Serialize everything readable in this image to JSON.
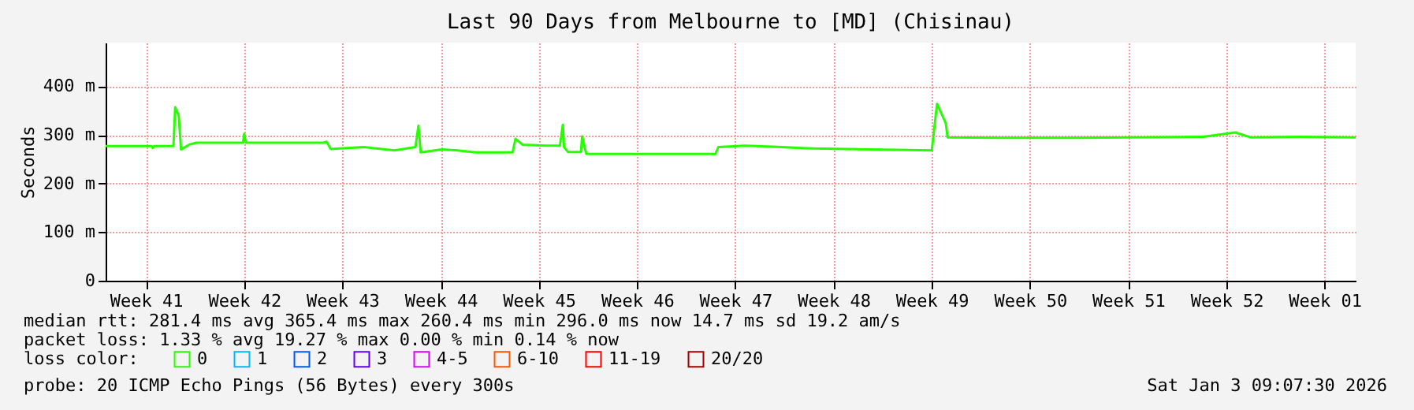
{
  "chart_data": {
    "type": "line",
    "title": "Last 90 Days from Melbourne to [MD] (Chisinau)",
    "ylabel": "Seconds",
    "legend_title": "loss color:",
    "legend": "bottom",
    "grid": true,
    "marker": "none",
    "line_style": "solid",
    "xlim": [
      "2025-10-06T15:00",
      "2026-01-03T17:00"
    ],
    "xticks": [
      {
        "value": "2025-10-09T12:00",
        "label": "Week 41"
      },
      {
        "value": "2025-10-16T12:00",
        "label": "Week 42"
      },
      {
        "value": "2025-10-23T12:00",
        "label": "Week 43"
      },
      {
        "value": "2025-10-30T12:00",
        "label": "Week 44"
      },
      {
        "value": "2025-11-06T12:00",
        "label": "Week 45"
      },
      {
        "value": "2025-11-13T12:00",
        "label": "Week 46"
      },
      {
        "value": "2025-11-20T12:00",
        "label": "Week 47"
      },
      {
        "value": "2025-11-27T12:00",
        "label": "Week 48"
      },
      {
        "value": "2025-12-04T12:00",
        "label": "Week 49"
      },
      {
        "value": "2025-12-11T12:00",
        "label": "Week 50"
      },
      {
        "value": "2025-12-18T12:00",
        "label": "Week 51"
      },
      {
        "value": "2025-12-25T12:00",
        "label": "Week 52"
      },
      {
        "value": "2026-01-01T12:00",
        "label": "Week 01"
      }
    ],
    "ylim": [
      0,
      490
    ],
    "yticks": [
      0,
      {
        "value": 100,
        "label": "100 m"
      },
      {
        "value": 200,
        "label": "200 m"
      },
      {
        "value": 300,
        "label": "300 m"
      },
      {
        "value": 400,
        "label": "400 m"
      }
    ],
    "series": [
      {
        "name": "0",
        "color": "#26ff00",
        "x": [
          "2025-10-06T15:00",
          "2025-10-09T21:00",
          "2025-10-10T00:00",
          "2025-10-10T02:00",
          "2025-10-11T11:00",
          "2025-10-11T14:00",
          "2025-10-11T20:00",
          "2025-10-12T00:00",
          "2025-10-12T14:00",
          "2025-10-13T02:00",
          "2025-10-16T10:00",
          "2025-10-16T12:00",
          "2025-10-16T15:00",
          "2025-10-22T04:00",
          "2025-10-22T09:00",
          "2025-10-22T16:00",
          "2025-10-25T00:00",
          "2025-10-27T05:00",
          "2025-10-28T17:00",
          "2025-10-28T22:00",
          "2025-10-29T02:00",
          "2025-10-30T14:00",
          "2025-10-31T16:00",
          "2025-11-02T00:00",
          "2025-11-04T15:00",
          "2025-11-04T20:00",
          "2025-11-05T08:00",
          "2025-11-07T00:00",
          "2025-11-08T00:00",
          "2025-11-08T05:00",
          "2025-11-08T07:00",
          "2025-11-08T14:00",
          "2025-11-09T12:00",
          "2025-11-09T14:00",
          "2025-11-09T21:00",
          "2025-11-19T02:00",
          "2025-11-19T07:00",
          "2025-11-21T04:00",
          "2025-11-23T03:00",
          "2025-11-26T00:00",
          "2025-11-30T02:00",
          "2025-12-04T12:00",
          "2025-12-04T21:00",
          "2025-12-05T12:00",
          "2025-12-05T15:00",
          "2025-12-10T00:00",
          "2025-12-14T22:00",
          "2025-12-23T20:00",
          "2025-12-26T03:00",
          "2025-12-27T05:00",
          "2025-12-30T18:00",
          "2026-01-03T17:00"
        ],
        "values": [
          277,
          277,
          273,
          277,
          277,
          357,
          340,
          270,
          280,
          284,
          284,
          302,
          284,
          284,
          286,
          271,
          275,
          268,
          275,
          319,
          264,
          270,
          268,
          264,
          264,
          292,
          280,
          278,
          278,
          321,
          275,
          265,
          265,
          297,
          261,
          261,
          275,
          278,
          276,
          272,
          270,
          268,
          364,
          324,
          295,
          294,
          294,
          296,
          305,
          295,
          296,
          295
        ]
      },
      {
        "name": "1",
        "color": "#00b8ff"
      },
      {
        "name": "2",
        "color": "#0059ff"
      },
      {
        "name": "3",
        "color": "#5e00ff"
      },
      {
        "name": "4-5",
        "color": "#dd00ff"
      },
      {
        "name": "6-10",
        "color": "#ff5500"
      },
      {
        "name": "11-19",
        "color": "#ff0000"
      },
      {
        "name": "20/20",
        "color": "#a10000"
      }
    ],
    "annotations": [
      "median rtt:  281.4 ms avg  365.4 ms max  260.4 ms min  296.0 ms now  14.7 ms sd  19.2   am/s",
      "packet loss: 1.33 % avg  19.27 % max  0.00 % min  0.14 % now",
      "probe:       20 ICMP Echo Pings (56 Bytes) every 300s",
      "Sat Jan  3 09:07:30 2026"
    ]
  }
}
